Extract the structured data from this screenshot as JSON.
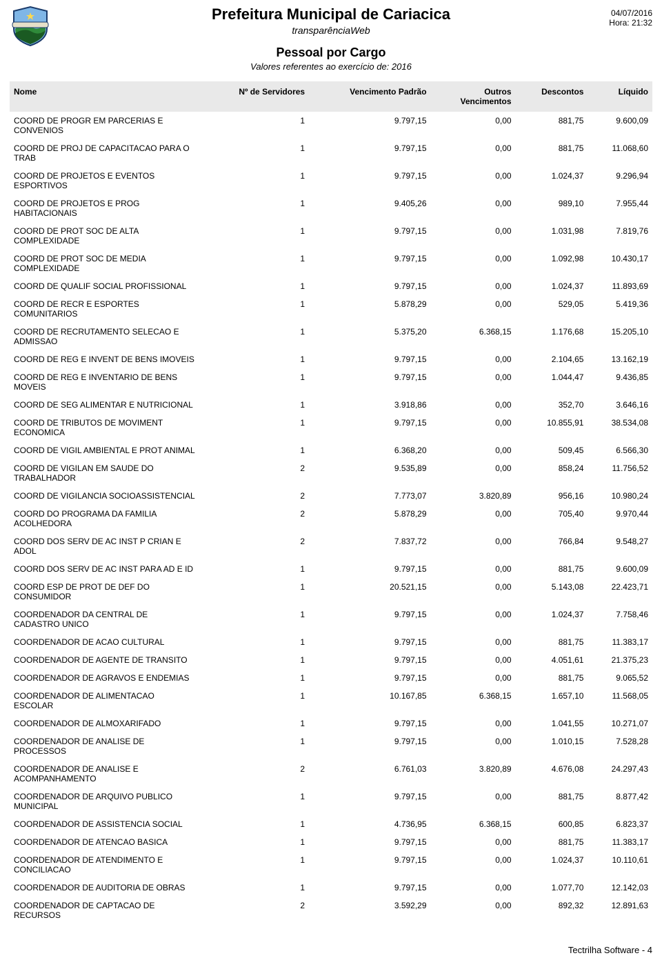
{
  "header": {
    "title": "Prefeitura Municipal de Cariacica",
    "subtitle": "transparênciaWeb",
    "date": "04/07/2016",
    "time": "Hora: 21:32",
    "section_title": "Pessoal por Cargo",
    "section_sub": "Valores referentes ao exercício de: 2016"
  },
  "logo": {
    "sky": "#7fb6e6",
    "hill_green": "#2f8a3a",
    "hill_dark": "#1a5a22",
    "ribbon": "#e6e0c8",
    "border": "#1a3a6a",
    "star": "#ffd84d"
  },
  "columns": [
    {
      "key": "nome",
      "label": "Nome",
      "align": "left"
    },
    {
      "key": "serv",
      "label": "Nº de Servidores",
      "align": "right"
    },
    {
      "key": "venc",
      "label": "Vencimento Padrão",
      "align": "right"
    },
    {
      "key": "outros",
      "label": "Outros",
      "sublabel": "Vencimentos",
      "align": "right"
    },
    {
      "key": "desc",
      "label": "Descontos",
      "align": "right"
    },
    {
      "key": "liq",
      "label": "Líquido",
      "align": "right"
    }
  ],
  "rows": [
    {
      "nome": "COORD DE PROGR EM PARCERIAS E CONVENIOS",
      "serv": "1",
      "venc": "9.797,15",
      "outros": "0,00",
      "desc": "881,75",
      "liq": "9.600,09"
    },
    {
      "nome": "COORD DE PROJ DE CAPACITACAO PARA O TRAB",
      "serv": "1",
      "venc": "9.797,15",
      "outros": "0,00",
      "desc": "881,75",
      "liq": "11.068,60"
    },
    {
      "nome": "COORD DE PROJETOS E EVENTOS ESPORTIVOS",
      "serv": "1",
      "venc": "9.797,15",
      "outros": "0,00",
      "desc": "1.024,37",
      "liq": "9.296,94"
    },
    {
      "nome": "COORD DE PROJETOS E PROG HABITACIONAIS",
      "serv": "1",
      "venc": "9.405,26",
      "outros": "0,00",
      "desc": "989,10",
      "liq": "7.955,44"
    },
    {
      "nome": "COORD DE PROT SOC DE ALTA COMPLEXIDADE",
      "serv": "1",
      "venc": "9.797,15",
      "outros": "0,00",
      "desc": "1.031,98",
      "liq": "7.819,76"
    },
    {
      "nome": "COORD DE PROT SOC DE MEDIA COMPLEXIDADE",
      "serv": "1",
      "venc": "9.797,15",
      "outros": "0,00",
      "desc": "1.092,98",
      "liq": "10.430,17"
    },
    {
      "nome": "COORD DE QUALIF SOCIAL PROFISSIONAL",
      "serv": "1",
      "venc": "9.797,15",
      "outros": "0,00",
      "desc": "1.024,37",
      "liq": "11.893,69"
    },
    {
      "nome": "COORD DE RECR E ESPORTES COMUNITARIOS",
      "serv": "1",
      "venc": "5.878,29",
      "outros": "0,00",
      "desc": "529,05",
      "liq": "5.419,36"
    },
    {
      "nome": "COORD DE RECRUTAMENTO SELECAO E ADMISSAO",
      "serv": "1",
      "venc": "5.375,20",
      "outros": "6.368,15",
      "desc": "1.176,68",
      "liq": "15.205,10"
    },
    {
      "nome": "COORD DE REG E INVENT DE BENS IMOVEIS",
      "serv": "1",
      "venc": "9.797,15",
      "outros": "0,00",
      "desc": "2.104,65",
      "liq": "13.162,19"
    },
    {
      "nome": "COORD DE REG E INVENTARIO DE BENS MOVEIS",
      "serv": "1",
      "venc": "9.797,15",
      "outros": "0,00",
      "desc": "1.044,47",
      "liq": "9.436,85"
    },
    {
      "nome": "COORD DE SEG ALIMENTAR E NUTRICIONAL",
      "serv": "1",
      "venc": "3.918,86",
      "outros": "0,00",
      "desc": "352,70",
      "liq": "3.646,16"
    },
    {
      "nome": "COORD DE TRIBUTOS DE MOVIMENT ECONOMICA",
      "serv": "1",
      "venc": "9.797,15",
      "outros": "0,00",
      "desc": "10.855,91",
      "liq": "38.534,08"
    },
    {
      "nome": "COORD DE VIGIL AMBIENTAL E PROT ANIMAL",
      "serv": "1",
      "venc": "6.368,20",
      "outros": "0,00",
      "desc": "509,45",
      "liq": "6.566,30"
    },
    {
      "nome": "COORD DE VIGILAN EM SAUDE DO TRABALHADOR",
      "serv": "2",
      "venc": "9.535,89",
      "outros": "0,00",
      "desc": "858,24",
      "liq": "11.756,52"
    },
    {
      "nome": "COORD DE VIGILANCIA SOCIOASSISTENCIAL",
      "serv": "2",
      "venc": "7.773,07",
      "outros": "3.820,89",
      "desc": "956,16",
      "liq": "10.980,24"
    },
    {
      "nome": "COORD DO PROGRAMA DA FAMILIA ACOLHEDORA",
      "serv": "2",
      "venc": "5.878,29",
      "outros": "0,00",
      "desc": "705,40",
      "liq": "9.970,44"
    },
    {
      "nome": "COORD DOS SERV DE AC INST P CRIAN E ADOL",
      "serv": "2",
      "venc": "7.837,72",
      "outros": "0,00",
      "desc": "766,84",
      "liq": "9.548,27"
    },
    {
      "nome": "COORD DOS SERV DE AC INST PARA AD E ID",
      "serv": "1",
      "venc": "9.797,15",
      "outros": "0,00",
      "desc": "881,75",
      "liq": "9.600,09"
    },
    {
      "nome": "COORD ESP DE PROT DE DEF DO CONSUMIDOR",
      "serv": "1",
      "venc": "20.521,15",
      "outros": "0,00",
      "desc": "5.143,08",
      "liq": "22.423,71"
    },
    {
      "nome": "COORDENADOR DA CENTRAL DE CADASTRO UNICO",
      "serv": "1",
      "venc": "9.797,15",
      "outros": "0,00",
      "desc": "1.024,37",
      "liq": "7.758,46"
    },
    {
      "nome": "COORDENADOR DE ACAO CULTURAL",
      "serv": "1",
      "venc": "9.797,15",
      "outros": "0,00",
      "desc": "881,75",
      "liq": "11.383,17"
    },
    {
      "nome": "COORDENADOR DE AGENTE DE TRANSITO",
      "serv": "1",
      "venc": "9.797,15",
      "outros": "0,00",
      "desc": "4.051,61",
      "liq": "21.375,23"
    },
    {
      "nome": "COORDENADOR DE AGRAVOS E ENDEMIAS",
      "serv": "1",
      "venc": "9.797,15",
      "outros": "0,00",
      "desc": "881,75",
      "liq": "9.065,52"
    },
    {
      "nome": "COORDENADOR DE ALIMENTACAO ESCOLAR",
      "serv": "1",
      "venc": "10.167,85",
      "outros": "6.368,15",
      "desc": "1.657,10",
      "liq": "11.568,05"
    },
    {
      "nome": "COORDENADOR DE ALMOXARIFADO",
      "serv": "1",
      "venc": "9.797,15",
      "outros": "0,00",
      "desc": "1.041,55",
      "liq": "10.271,07"
    },
    {
      "nome": "COORDENADOR DE ANALISE DE PROCESSOS",
      "serv": "1",
      "venc": "9.797,15",
      "outros": "0,00",
      "desc": "1.010,15",
      "liq": "7.528,28"
    },
    {
      "nome": "COORDENADOR DE ANALISE E ACOMPANHAMENTO",
      "serv": "2",
      "venc": "6.761,03",
      "outros": "3.820,89",
      "desc": "4.676,08",
      "liq": "24.297,43"
    },
    {
      "nome": "COORDENADOR DE ARQUIVO PUBLICO MUNICIPAL",
      "serv": "1",
      "venc": "9.797,15",
      "outros": "0,00",
      "desc": "881,75",
      "liq": "8.877,42"
    },
    {
      "nome": "COORDENADOR DE ASSISTENCIA SOCIAL",
      "serv": "1",
      "venc": "4.736,95",
      "outros": "6.368,15",
      "desc": "600,85",
      "liq": "6.823,37"
    },
    {
      "nome": "COORDENADOR DE ATENCAO BASICA",
      "serv": "1",
      "venc": "9.797,15",
      "outros": "0,00",
      "desc": "881,75",
      "liq": "11.383,17"
    },
    {
      "nome": "COORDENADOR DE ATENDIMENTO E CONCILIACAO",
      "serv": "1",
      "venc": "9.797,15",
      "outros": "0,00",
      "desc": "1.024,37",
      "liq": "10.110,61"
    },
    {
      "nome": "COORDENADOR DE AUDITORIA DE OBRAS",
      "serv": "1",
      "venc": "9.797,15",
      "outros": "0,00",
      "desc": "1.077,70",
      "liq": "12.142,03"
    },
    {
      "nome": "COORDENADOR DE CAPTACAO DE RECURSOS",
      "serv": "2",
      "venc": "3.592,29",
      "outros": "0,00",
      "desc": "892,32",
      "liq": "12.891,63"
    }
  ],
  "footer": "Tectrilha Software - 4",
  "style": {
    "header_bg": "#e9e9e9",
    "text_color": "#000000",
    "font_family": "Arial, Helvetica, sans-serif",
    "title_fontsize": 22,
    "section_title_fontsize": 18,
    "body_fontsize": 12
  }
}
